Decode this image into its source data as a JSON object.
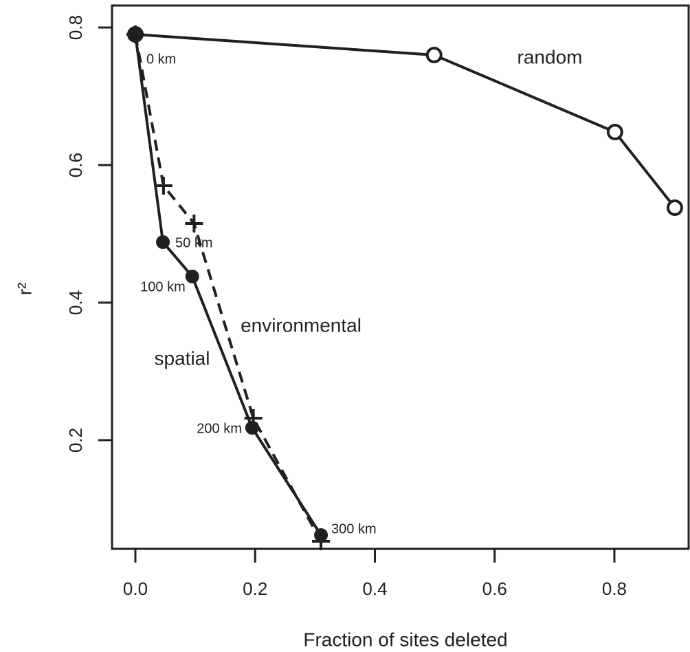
{
  "chart_data": {
    "type": "line",
    "x_label": "Fraction of sites deleted",
    "y_label": "r²",
    "xlim": [
      -0.039,
      0.924
    ],
    "ylim": [
      0.042,
      0.832
    ],
    "xticks": [
      {
        "value": 0,
        "label": "0.0"
      },
      0.2,
      0.4,
      0.6,
      0.8
    ],
    "yticks": [
      0.2,
      0.4,
      0.6,
      0.8
    ],
    "series": [
      {
        "name": "random",
        "color": "#231f20",
        "marker": "open-circle",
        "linestyle": "solid",
        "x": [
          0,
          0.499,
          0.801,
          0.901
        ],
        "values": [
          0.79,
          0.76,
          0.648,
          0.538
        ]
      },
      {
        "name": "spatial",
        "color": "#231f20",
        "marker": "filled-circle",
        "linestyle": "solid",
        "x": [
          0,
          0.046,
          0.095,
          0.195,
          0.31
        ],
        "values": [
          0.79,
          0.488,
          0.438,
          0.218,
          0.062
        ],
        "point_labels": [
          "0 km",
          "50 km",
          "100 km",
          "200 km",
          "300 km"
        ]
      },
      {
        "name": "environmental",
        "color": "#231f20",
        "marker": "plus",
        "linestyle": "dashed",
        "x": [
          0,
          0.047,
          0.098,
          0.197,
          0.31
        ],
        "values": [
          0.79,
          0.57,
          0.515,
          0.232,
          0.053
        ]
      }
    ]
  }
}
